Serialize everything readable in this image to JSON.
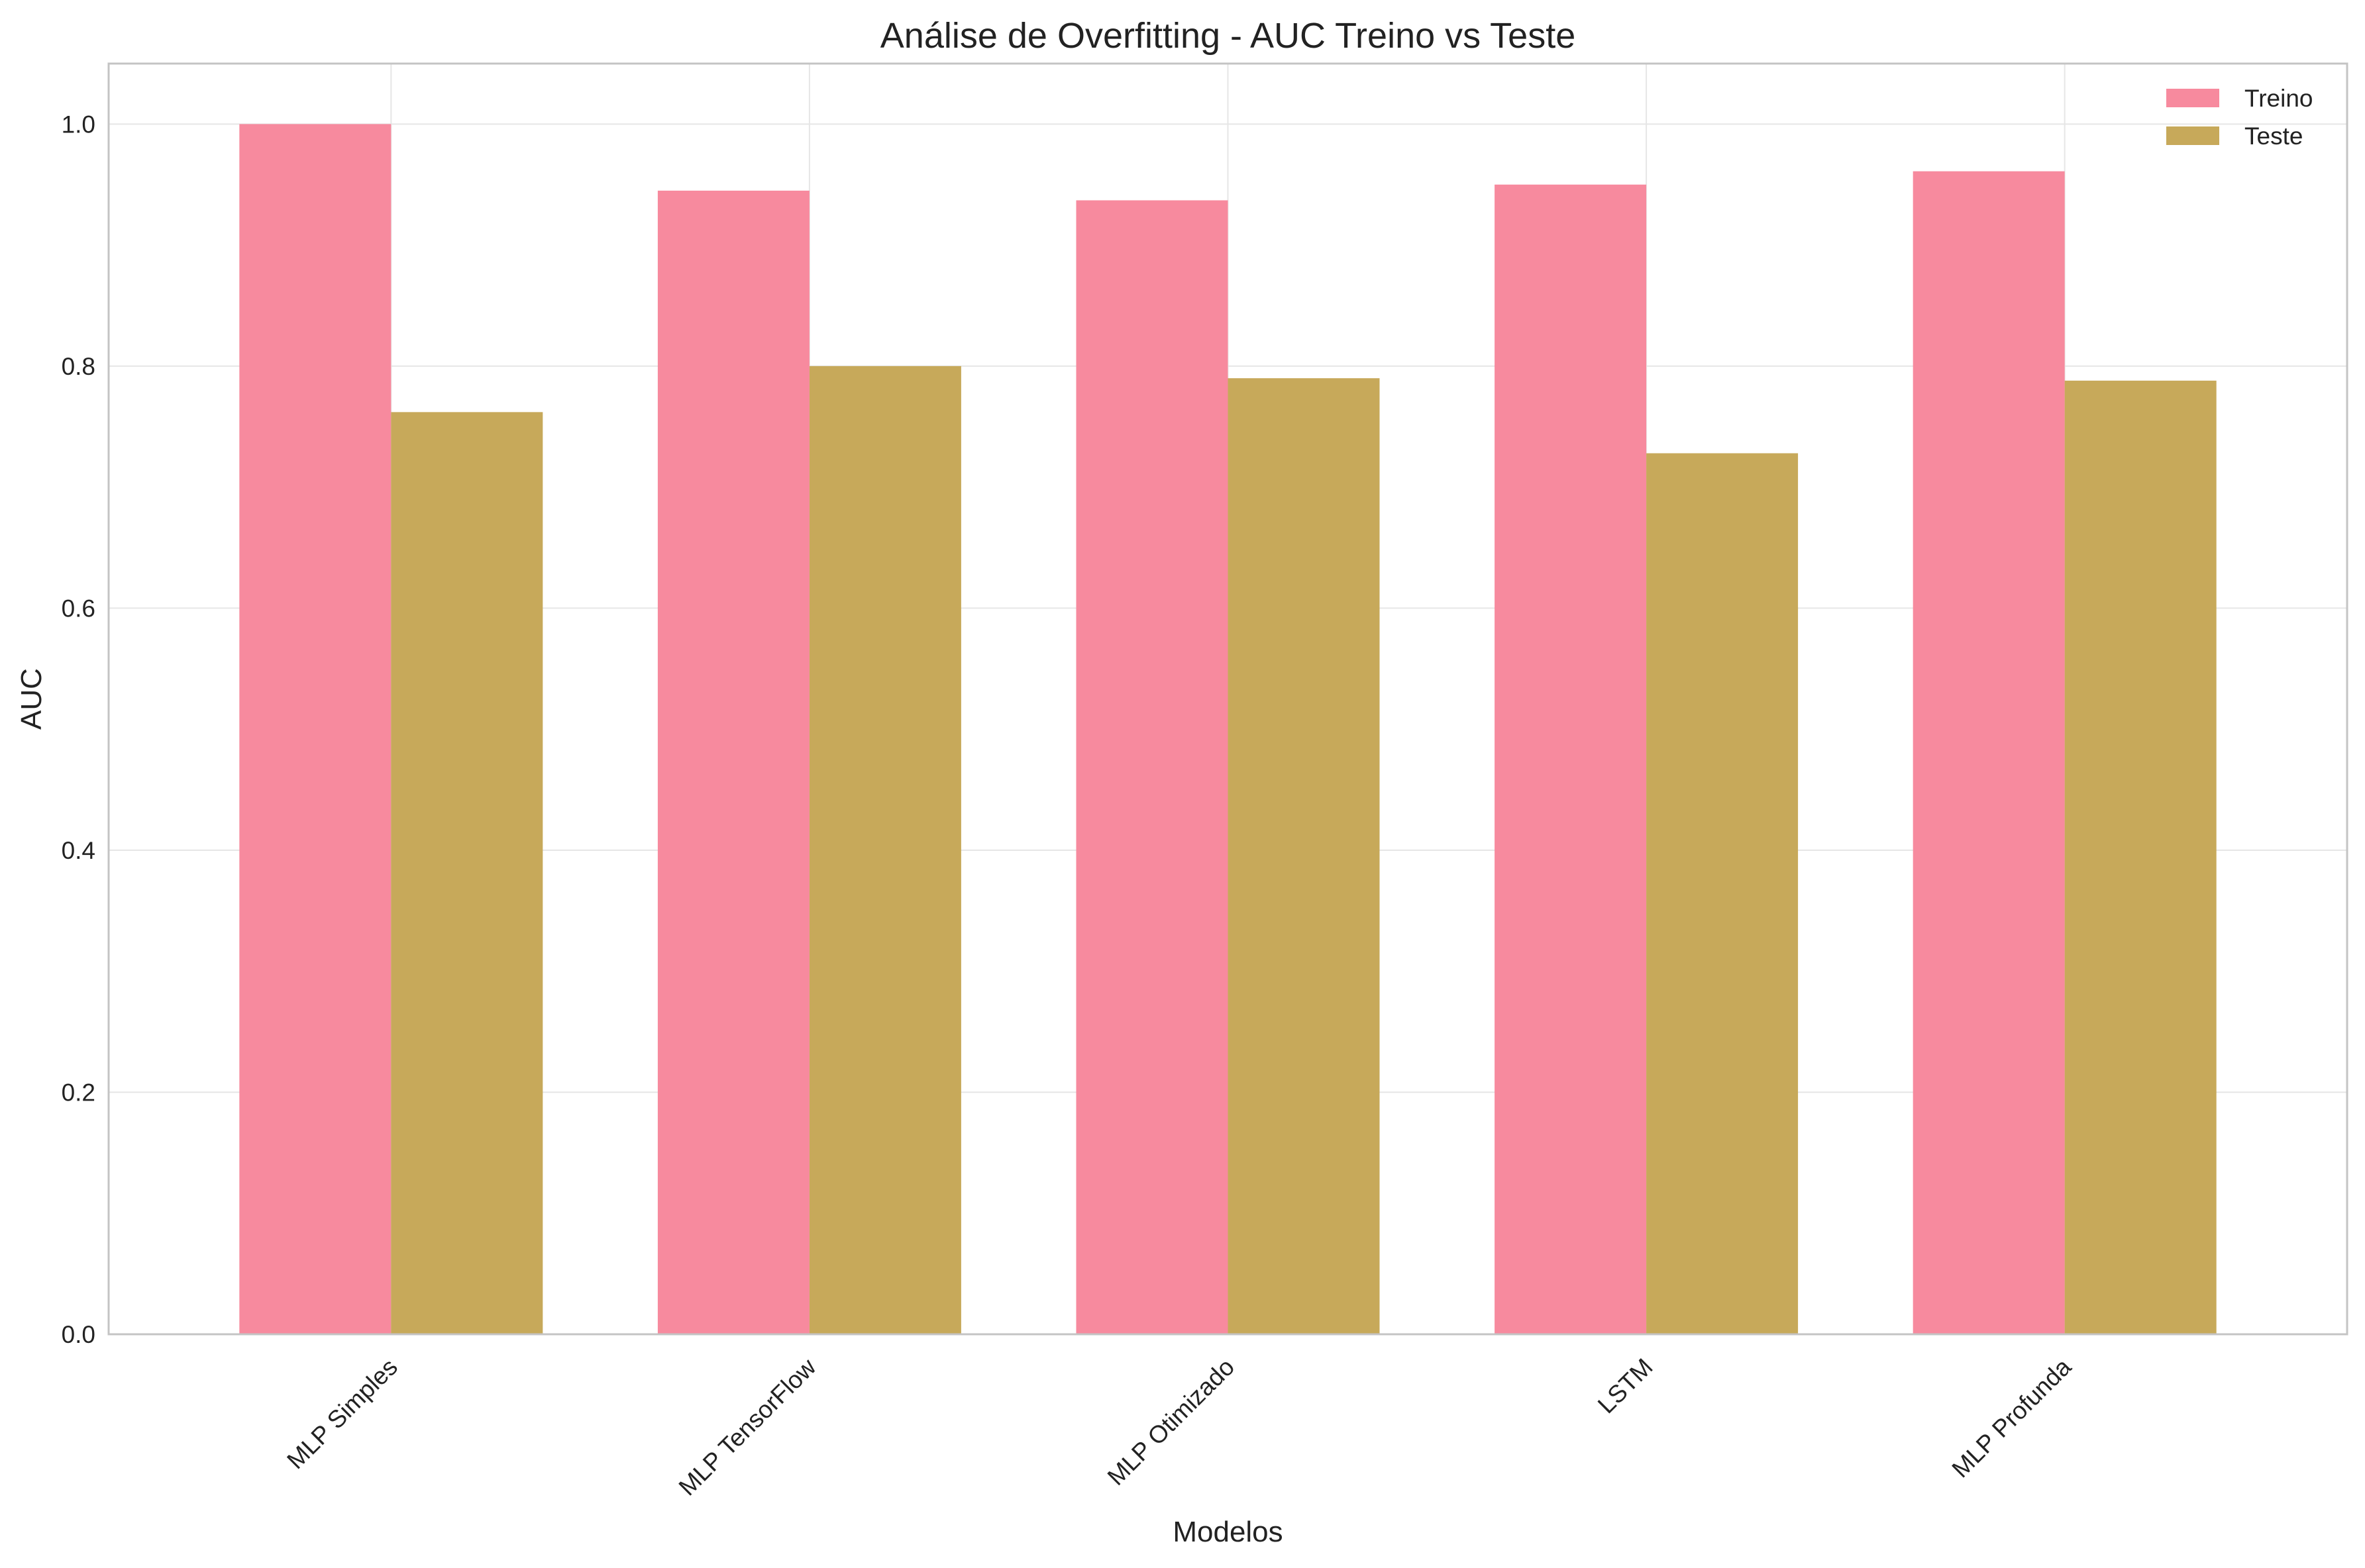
{
  "chart_data": {
    "type": "bar",
    "title": "Análise de Overfitting - AUC Treino vs Teste",
    "xlabel": "Modelos",
    "ylabel": "AUC",
    "categories": [
      "MLP Simples",
      "MLP TensorFlow",
      "MLP Otimizado",
      "LSTM",
      "MLP Profunda"
    ],
    "series": [
      {
        "name": "Treino",
        "color": "#f78a9e",
        "values": [
          1.0,
          0.945,
          0.937,
          0.95,
          0.961
        ]
      },
      {
        "name": "Teste",
        "color": "#c7a95a",
        "values": [
          0.762,
          0.8,
          0.79,
          0.728,
          0.788
        ]
      }
    ],
    "ylim": [
      0,
      1.05
    ],
    "yticks": [
      0.0,
      0.2,
      0.4,
      0.6,
      0.8,
      1.0
    ],
    "ytick_labels": [
      "0.0",
      "0.2",
      "0.4",
      "0.6",
      "0.8",
      "1.0"
    ],
    "grid": true,
    "legend_position": "top-right",
    "xtick_rotation": "45"
  }
}
